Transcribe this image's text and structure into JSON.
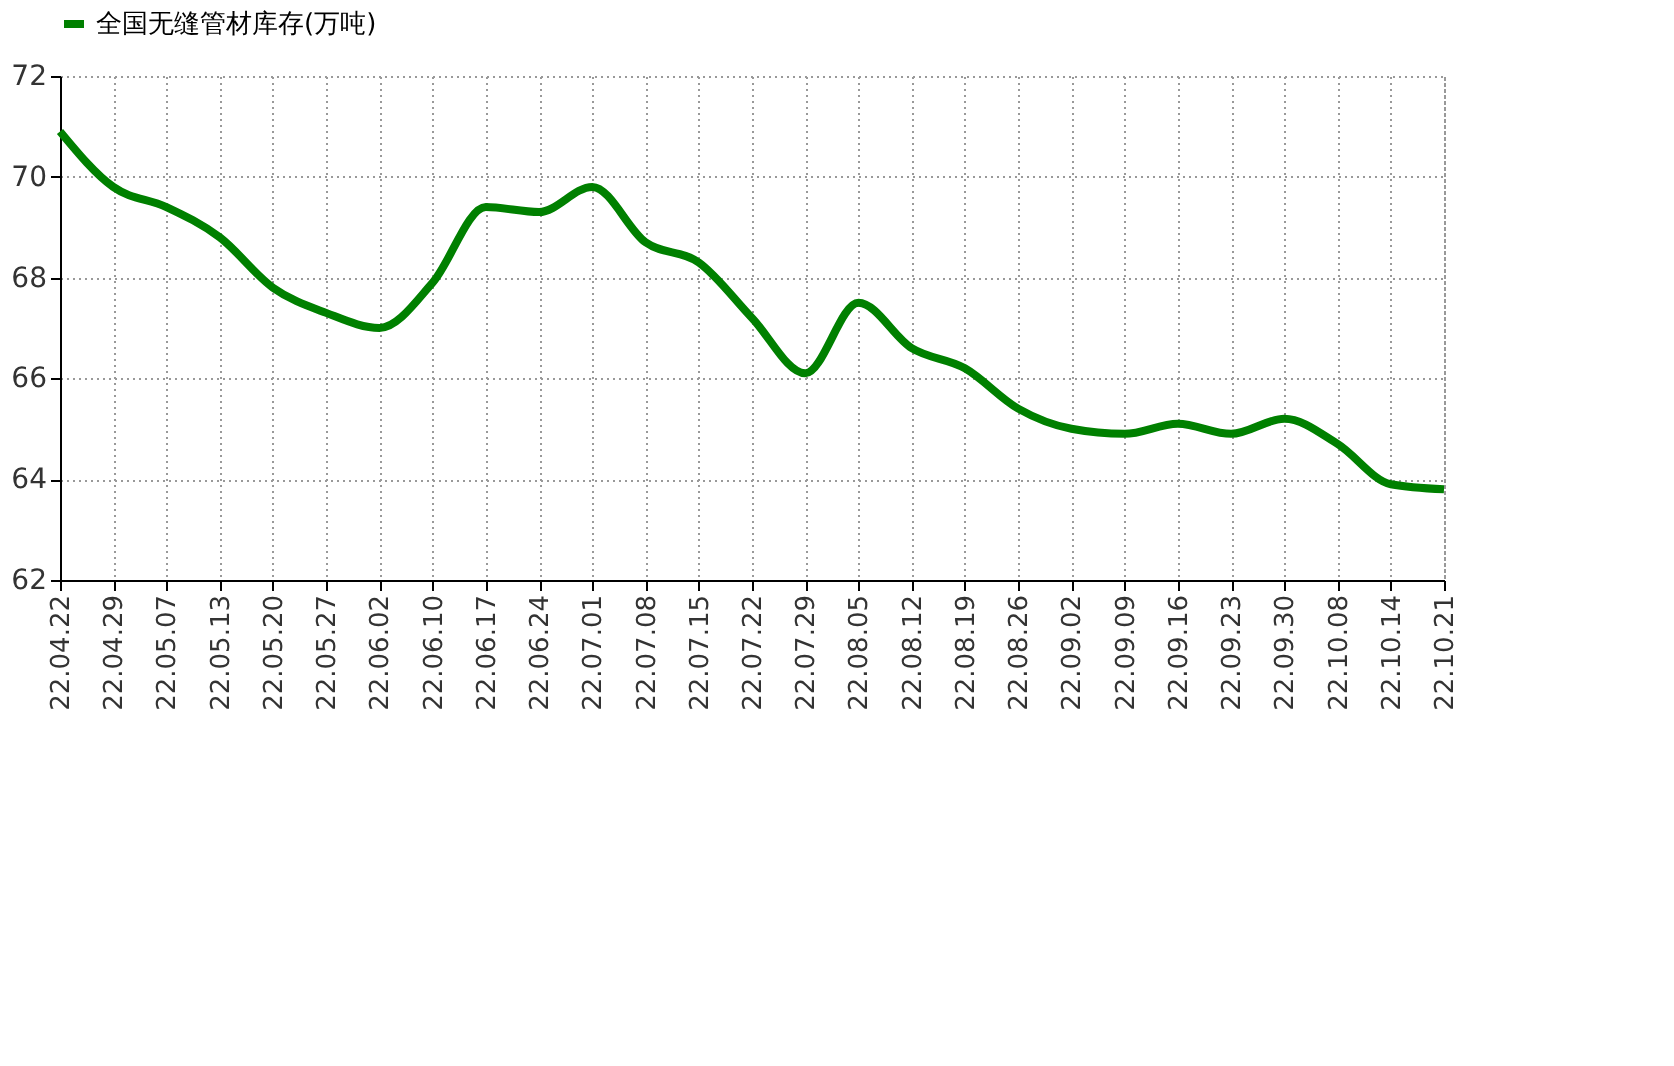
{
  "chart_data": {
    "type": "line",
    "categories": [
      "22.04.22",
      "22.04.29",
      "22.05.07",
      "22.05.13",
      "22.05.20",
      "22.05.27",
      "22.06.02",
      "22.06.10",
      "22.06.17",
      "22.06.24",
      "22.07.01",
      "22.07.08",
      "22.07.15",
      "22.07.22",
      "22.07.29",
      "22.08.05",
      "22.08.12",
      "22.08.19",
      "22.08.26",
      "22.09.02",
      "22.09.09",
      "22.09.16",
      "22.09.23",
      "22.09.30",
      "22.10.08",
      "22.10.14",
      "22.10.21"
    ],
    "series": [
      {
        "name": "全国无缝管材库存(万吨)",
        "color": "#008000",
        "values": [
          70.9,
          69.8,
          69.4,
          68.8,
          67.8,
          67.3,
          67.0,
          67.9,
          69.4,
          69.3,
          69.8,
          68.7,
          68.3,
          67.2,
          66.1,
          67.5,
          66.6,
          66.2,
          65.4,
          65.0,
          64.9,
          65.1,
          64.9,
          65.2,
          64.7,
          63.9,
          63.8
        ]
      }
    ],
    "ylim": [
      62,
      72
    ],
    "yticks": [
      62,
      64,
      66,
      68,
      70,
      72
    ],
    "grid": true,
    "legend": "top",
    "line_style": "solid",
    "marker": "none"
  }
}
